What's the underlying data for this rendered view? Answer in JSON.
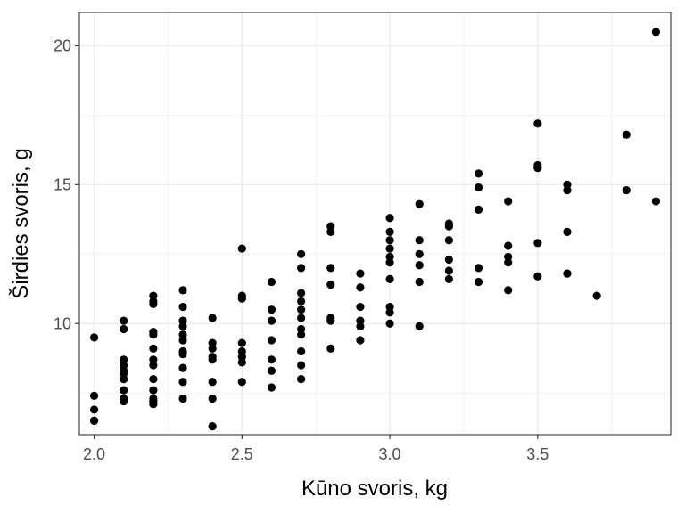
{
  "chart_data": {
    "type": "scatter",
    "title": "",
    "xlabel": "Kūno svoris, kg",
    "ylabel": "Širdies svoris, g",
    "xlim": [
      1.95,
      3.95
    ],
    "ylim": [
      6.0,
      21.2
    ],
    "x_ticks": [
      2.0,
      2.5,
      3.0,
      3.5
    ],
    "x_tick_labels": [
      "2.0",
      "2.5",
      "3.0",
      "3.5"
    ],
    "y_ticks": [
      10,
      15,
      20
    ],
    "y_tick_labels": [
      "10",
      "15",
      "20"
    ],
    "grid": true,
    "theme": "bw",
    "point_color": "#000000",
    "points": [
      [
        2.0,
        9.5
      ],
      [
        2.0,
        7.4
      ],
      [
        2.0,
        6.9
      ],
      [
        2.0,
        6.5
      ],
      [
        2.0,
        6.5
      ],
      [
        2.1,
        10.1
      ],
      [
        2.1,
        9.8
      ],
      [
        2.1,
        8.7
      ],
      [
        2.1,
        8.5
      ],
      [
        2.1,
        8.3
      ],
      [
        2.1,
        8.2
      ],
      [
        2.1,
        8.0
      ],
      [
        2.1,
        7.6
      ],
      [
        2.1,
        7.3
      ],
      [
        2.1,
        7.2
      ],
      [
        2.2,
        11.0
      ],
      [
        2.2,
        10.8
      ],
      [
        2.2,
        10.7
      ],
      [
        2.2,
        9.7
      ],
      [
        2.2,
        9.6
      ],
      [
        2.2,
        9.1
      ],
      [
        2.2,
        8.7
      ],
      [
        2.2,
        8.5
      ],
      [
        2.2,
        8.0
      ],
      [
        2.2,
        7.6
      ],
      [
        2.2,
        7.3
      ],
      [
        2.2,
        7.2
      ],
      [
        2.2,
        7.1
      ],
      [
        2.3,
        11.2
      ],
      [
        2.3,
        10.6
      ],
      [
        2.3,
        10.1
      ],
      [
        2.3,
        9.9
      ],
      [
        2.3,
        9.6
      ],
      [
        2.3,
        9.4
      ],
      [
        2.3,
        9.0
      ],
      [
        2.3,
        8.9
      ],
      [
        2.3,
        8.4
      ],
      [
        2.3,
        7.9
      ],
      [
        2.3,
        7.3
      ],
      [
        2.4,
        10.2
      ],
      [
        2.4,
        9.3
      ],
      [
        2.4,
        9.1
      ],
      [
        2.4,
        8.8
      ],
      [
        2.4,
        8.7
      ],
      [
        2.4,
        7.9
      ],
      [
        2.4,
        7.3
      ],
      [
        2.4,
        6.3
      ],
      [
        2.5,
        12.7
      ],
      [
        2.5,
        11.0
      ],
      [
        2.5,
        10.9
      ],
      [
        2.5,
        9.3
      ],
      [
        2.5,
        9.0
      ],
      [
        2.5,
        8.8
      ],
      [
        2.5,
        8.6
      ],
      [
        2.5,
        7.9
      ],
      [
        2.6,
        11.5
      ],
      [
        2.6,
        10.5
      ],
      [
        2.6,
        10.1
      ],
      [
        2.6,
        9.4
      ],
      [
        2.6,
        8.7
      ],
      [
        2.6,
        8.3
      ],
      [
        2.6,
        7.7
      ],
      [
        2.7,
        12.5
      ],
      [
        2.7,
        12.0
      ],
      [
        2.7,
        11.1
      ],
      [
        2.7,
        10.8
      ],
      [
        2.7,
        10.5
      ],
      [
        2.7,
        10.2
      ],
      [
        2.7,
        9.8
      ],
      [
        2.7,
        9.6
      ],
      [
        2.7,
        9.0
      ],
      [
        2.7,
        8.5
      ],
      [
        2.7,
        8.0
      ],
      [
        2.8,
        13.5
      ],
      [
        2.8,
        13.3
      ],
      [
        2.8,
        12.0
      ],
      [
        2.8,
        11.4
      ],
      [
        2.8,
        10.2
      ],
      [
        2.8,
        10.1
      ],
      [
        2.8,
        9.1
      ],
      [
        2.9,
        11.8
      ],
      [
        2.9,
        11.3
      ],
      [
        2.9,
        10.6
      ],
      [
        2.9,
        10.1
      ],
      [
        2.9,
        9.9
      ],
      [
        2.9,
        9.4
      ],
      [
        3.0,
        13.8
      ],
      [
        3.0,
        13.3
      ],
      [
        3.0,
        13.0
      ],
      [
        3.0,
        12.7
      ],
      [
        3.0,
        12.4
      ],
      [
        3.0,
        12.2
      ],
      [
        3.0,
        11.6
      ],
      [
        3.0,
        10.6
      ],
      [
        3.0,
        10.4
      ],
      [
        3.0,
        10.0
      ],
      [
        3.1,
        14.3
      ],
      [
        3.1,
        13.0
      ],
      [
        3.1,
        12.5
      ],
      [
        3.1,
        12.1
      ],
      [
        3.1,
        11.5
      ],
      [
        3.1,
        9.9
      ],
      [
        3.2,
        13.6
      ],
      [
        3.2,
        13.5
      ],
      [
        3.2,
        13.0
      ],
      [
        3.2,
        12.3
      ],
      [
        3.2,
        11.9
      ],
      [
        3.2,
        11.6
      ],
      [
        3.3,
        15.4
      ],
      [
        3.3,
        14.9
      ],
      [
        3.3,
        14.1
      ],
      [
        3.3,
        12.0
      ],
      [
        3.3,
        11.5
      ],
      [
        3.4,
        14.4
      ],
      [
        3.4,
        12.8
      ],
      [
        3.4,
        12.4
      ],
      [
        3.4,
        12.2
      ],
      [
        3.4,
        11.2
      ],
      [
        3.5,
        17.2
      ],
      [
        3.5,
        15.7
      ],
      [
        3.5,
        15.6
      ],
      [
        3.5,
        12.9
      ],
      [
        3.5,
        11.7
      ],
      [
        3.6,
        15.0
      ],
      [
        3.6,
        14.8
      ],
      [
        3.6,
        13.3
      ],
      [
        3.6,
        11.8
      ],
      [
        3.7,
        11.0
      ],
      [
        3.8,
        16.8
      ],
      [
        3.8,
        14.8
      ],
      [
        3.9,
        20.5
      ],
      [
        3.9,
        14.4
      ]
    ]
  }
}
